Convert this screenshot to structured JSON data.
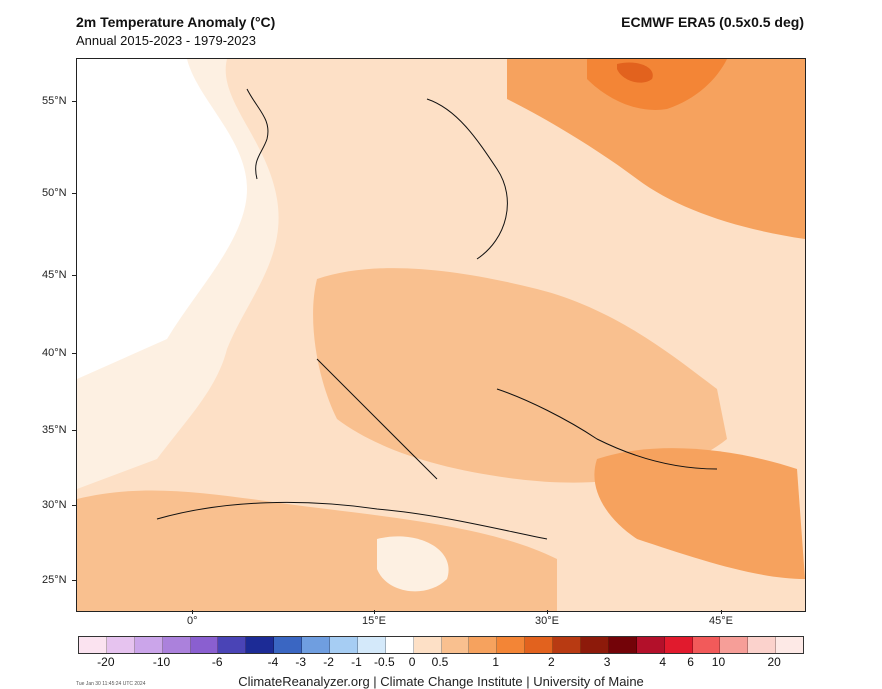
{
  "header": {
    "title": "2m Temperature Anomaly (°C)",
    "subtitle": "Annual 2015-2023 - 1979-2023",
    "dataset": "ECMWF ERA5 (0.5x0.5 deg)"
  },
  "map": {
    "lat_labels": [
      "55°N",
      "50°N",
      "45°N",
      "40°N",
      "35°N",
      "30°N",
      "25°N"
    ],
    "lon_labels": [
      "0°",
      "15°E",
      "30°E",
      "45°E"
    ]
  },
  "colorbar": {
    "labels": [
      "-20",
      "-10",
      "-6",
      "-4",
      "-3",
      "-2",
      "-1",
      "-0.5",
      "0",
      "0.5",
      "1",
      "2",
      "3",
      "4",
      "6",
      "10",
      "20"
    ],
    "colors": [
      "#fbe3f0",
      "#e6c3ef",
      "#cba5ea",
      "#ab81dc",
      "#8a5fd0",
      "#4a44b6",
      "#1c2b96",
      "#3a66c2",
      "#6f9ee0",
      "#a6cdf3",
      "#d4e9fa",
      "#ffffff",
      "#fde0c6",
      "#f9c08f",
      "#f6a25e",
      "#f38536",
      "#e2621e",
      "#b83a12",
      "#8d1a0a",
      "#730308",
      "#b3102a",
      "#e11a2d",
      "#f25a5a",
      "#f69e98",
      "#fbd2cc",
      "#fde9e6"
    ]
  },
  "footer": {
    "credit": "ClimateReanalyzer.org | Climate Change Institute | University of Maine",
    "timestamp": "Tue Jan 30 11:45:24 UTC 2024"
  }
}
